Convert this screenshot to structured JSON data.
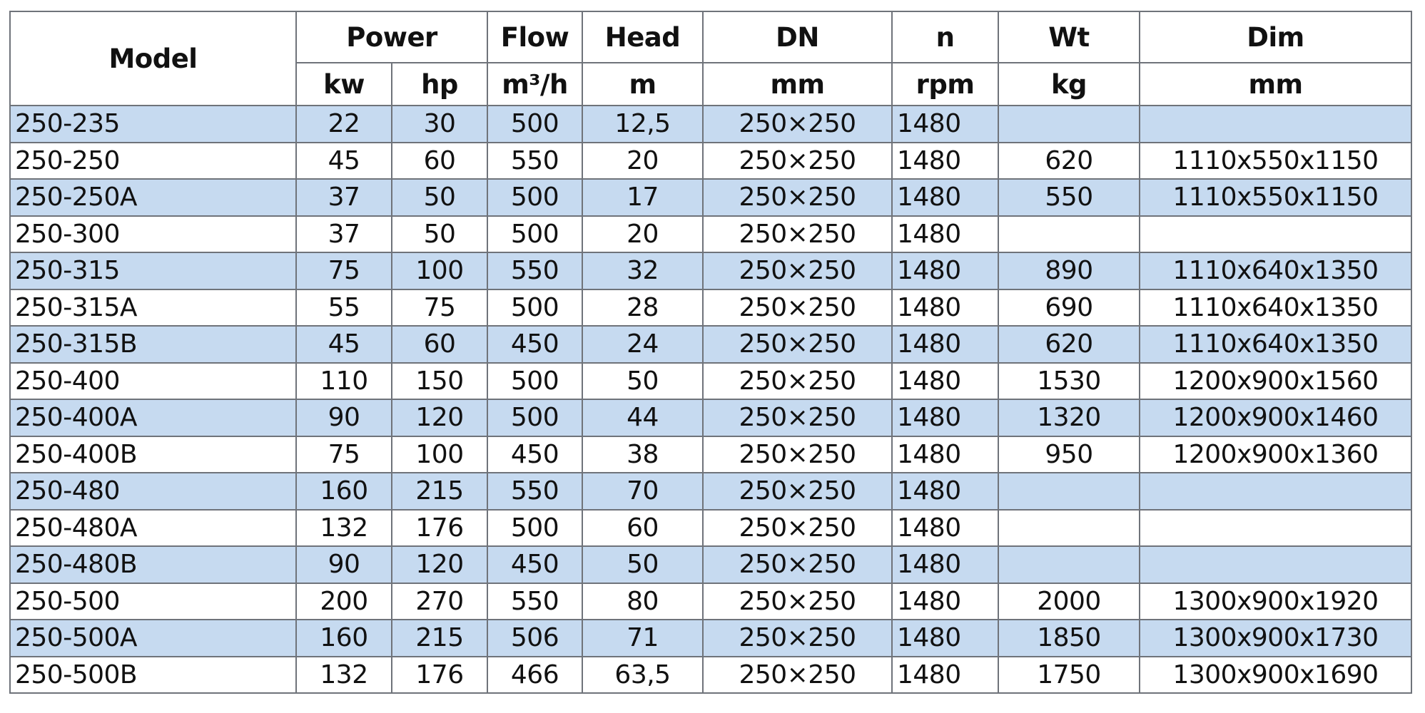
{
  "header": {
    "model": "Model",
    "groups": [
      "Power",
      "Flow",
      "Head",
      "DN",
      "n",
      "Wt",
      "Dim"
    ],
    "units": [
      "kw",
      "hp",
      "m³/h",
      "m",
      "mm",
      "rpm",
      "kg",
      "mm"
    ]
  },
  "rows": [
    [
      "250-235",
      "22",
      "30",
      "500",
      "12,5",
      "250×250",
      "1480",
      "",
      ""
    ],
    [
      "250-250",
      "45",
      "60",
      "550",
      "20",
      "250×250",
      "1480",
      "620",
      "1110x550x1150"
    ],
    [
      "250-250A",
      "37",
      "50",
      "500",
      "17",
      "250×250",
      "1480",
      "550",
      "1110x550x1150"
    ],
    [
      "250-300",
      "37",
      "50",
      "500",
      "20",
      "250×250",
      "1480",
      "",
      ""
    ],
    [
      "250-315",
      "75",
      "100",
      "550",
      "32",
      "250×250",
      "1480",
      "890",
      "1110x640x1350"
    ],
    [
      "250-315A",
      "55",
      "75",
      "500",
      "28",
      "250×250",
      "1480",
      "690",
      "1110x640x1350"
    ],
    [
      "250-315B",
      "45",
      "60",
      "450",
      "24",
      "250×250",
      "1480",
      "620",
      "1110x640x1350"
    ],
    [
      "250-400",
      "110",
      "150",
      "500",
      "50",
      "250×250",
      "1480",
      "1530",
      "1200x900x1560"
    ],
    [
      "250-400A",
      "90",
      "120",
      "500",
      "44",
      "250×250",
      "1480",
      "1320",
      "1200x900x1460"
    ],
    [
      "250-400B",
      "75",
      "100",
      "450",
      "38",
      "250×250",
      "1480",
      "950",
      "1200x900x1360"
    ],
    [
      "250-480",
      "160",
      "215",
      "550",
      "70",
      "250×250",
      "1480",
      "",
      ""
    ],
    [
      "250-480A",
      "132",
      "176",
      "500",
      "60",
      "250×250",
      "1480",
      "",
      ""
    ],
    [
      "250-480B",
      "90",
      "120",
      "450",
      "50",
      "250×250",
      "1480",
      "",
      ""
    ],
    [
      "250-500",
      "200",
      "270",
      "550",
      "80",
      "250×250",
      "1480",
      "2000",
      "1300x900x1920"
    ],
    [
      "250-500A",
      "160",
      "215",
      "506",
      "71",
      "250×250",
      "1480",
      "1850",
      "1300x900x1730"
    ],
    [
      "250-500B",
      "132",
      "176",
      "466",
      "63,5",
      "250×250",
      "1480",
      "1750",
      "1300x900x1690"
    ]
  ],
  "colors": {
    "alt_row": "#c6daf0",
    "border": "#6f737a"
  }
}
